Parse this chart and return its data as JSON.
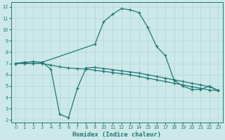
{
  "xlabel": "Humidex (Indice chaleur)",
  "background_color": "#cce8e8",
  "line_color": "#1f7872",
  "grid_color": "#aad4d4",
  "xlim": [
    -0.5,
    23.5
  ],
  "ylim": [
    1.8,
    12.4
  ],
  "xticks": [
    0,
    1,
    2,
    3,
    4,
    5,
    6,
    7,
    8,
    9,
    10,
    11,
    12,
    13,
    14,
    15,
    16,
    17,
    18,
    19,
    20,
    21,
    22,
    23
  ],
  "yticks": [
    2,
    3,
    4,
    5,
    6,
    7,
    8,
    9,
    10,
    11,
    12
  ],
  "line1_x": [
    0,
    1,
    2,
    3,
    9,
    10,
    11,
    12,
    13,
    14,
    15,
    16,
    17,
    18,
    19,
    20,
    21,
    22,
    23
  ],
  "line1_y": [
    7.0,
    7.1,
    7.15,
    7.1,
    8.7,
    10.7,
    11.35,
    11.85,
    11.75,
    11.5,
    10.2,
    8.5,
    7.7,
    5.5,
    5.0,
    4.7,
    4.7,
    5.0,
    4.6
  ],
  "line2_x": [
    0,
    1,
    2,
    3,
    4,
    5,
    6,
    7,
    8,
    9,
    10,
    11,
    12,
    13,
    14,
    15,
    16,
    17,
    18,
    19,
    20,
    21,
    22,
    23
  ],
  "line2_y": [
    7.0,
    7.1,
    7.15,
    7.1,
    6.5,
    2.5,
    2.2,
    4.8,
    6.6,
    6.65,
    6.55,
    6.45,
    6.35,
    6.25,
    6.15,
    6.0,
    5.85,
    5.7,
    5.55,
    5.4,
    5.25,
    5.1,
    4.95,
    4.6
  ],
  "line3_x": [
    0,
    1,
    2,
    3,
    4,
    5,
    6,
    7,
    8,
    9,
    10,
    11,
    12,
    13,
    14,
    15,
    16,
    17,
    18,
    19,
    20,
    21,
    22,
    23
  ],
  "line3_y": [
    7.0,
    7.0,
    7.0,
    7.0,
    6.85,
    6.7,
    6.6,
    6.55,
    6.5,
    6.4,
    6.3,
    6.2,
    6.1,
    6.0,
    5.85,
    5.7,
    5.55,
    5.4,
    5.25,
    5.1,
    4.95,
    4.8,
    4.65,
    4.6
  ]
}
